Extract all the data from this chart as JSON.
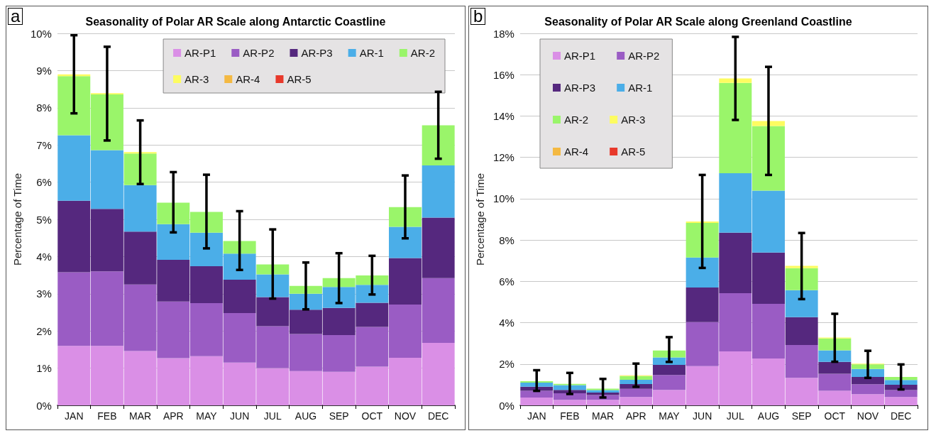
{
  "chart_data": [
    {
      "type": "bar",
      "title": "Seasonality of Polar AR Scale along Antarctic Coastline",
      "annotations": [
        "a"
      ],
      "ylabel": "Percentage of Time",
      "categories": [
        "JAN",
        "FEB",
        "MAR",
        "APR",
        "MAY",
        "JUN",
        "JUL",
        "AUG",
        "SEP",
        "OCT",
        "NOV",
        "DEC"
      ],
      "stacked": true,
      "ylim": [
        0,
        10
      ],
      "yticks": [
        {
          "value": 0,
          "label": "0%"
        },
        {
          "value": 1,
          "label": "1%"
        },
        {
          "value": 2,
          "label": "2%"
        },
        {
          "value": 3,
          "label": "3%"
        },
        {
          "value": 4,
          "label": "4%"
        },
        {
          "value": 5,
          "label": "5%"
        },
        {
          "value": 6,
          "label": "6%"
        },
        {
          "value": 7,
          "label": "7%"
        },
        {
          "value": 8,
          "label": "8%"
        },
        {
          "value": 9,
          "label": "9%"
        },
        {
          "value": 10,
          "label": "10%"
        }
      ],
      "grid": "y",
      "legend": "top right",
      "series": [
        {
          "name": "AR-P1",
          "color": "#da8fe6",
          "values": [
            1.6,
            1.6,
            1.46,
            1.27,
            1.32,
            1.15,
            1.0,
            0.92,
            0.9,
            1.04,
            1.28,
            1.68
          ]
        },
        {
          "name": "AR-P2",
          "color": "#9a5cc4",
          "values": [
            1.98,
            2.0,
            1.79,
            1.52,
            1.43,
            1.33,
            1.13,
            1.0,
            0.99,
            1.07,
            1.43,
            1.74
          ]
        },
        {
          "name": "AR-P3",
          "color": "#55287e",
          "values": [
            1.92,
            1.68,
            1.42,
            1.12,
            0.99,
            0.9,
            0.78,
            0.65,
            0.73,
            0.65,
            1.25,
            1.63
          ]
        },
        {
          "name": "AR-1",
          "color": "#4baee8",
          "values": [
            1.76,
            1.58,
            1.25,
            0.96,
            0.9,
            0.7,
            0.61,
            0.43,
            0.56,
            0.48,
            0.84,
            1.4
          ]
        },
        {
          "name": "AR-2",
          "color": "#9af56a",
          "values": [
            1.59,
            1.5,
            0.85,
            0.58,
            0.56,
            0.34,
            0.27,
            0.21,
            0.24,
            0.25,
            0.53,
            1.08
          ]
        },
        {
          "name": "AR-3",
          "color": "#fdfc60",
          "values": [
            0.05,
            0.03,
            0.04,
            0,
            0,
            0,
            0,
            0,
            0,
            0,
            0,
            0
          ]
        },
        {
          "name": "AR-4",
          "color": "#f4b942",
          "values": [
            0,
            0,
            0,
            0,
            0,
            0,
            0,
            0,
            0,
            0,
            0,
            0
          ]
        },
        {
          "name": "AR-5",
          "color": "#e8392b",
          "values": [
            0,
            0,
            0,
            0,
            0,
            0,
            0,
            0,
            0,
            0,
            0,
            0
          ],
          "errors": [
            [
              7.85,
              9.95
            ],
            [
              7.12,
              9.64
            ],
            [
              5.95,
              7.66
            ],
            [
              4.65,
              6.27
            ],
            [
              4.22,
              6.2
            ],
            [
              3.64,
              5.22
            ],
            [
              2.87,
              4.73
            ],
            [
              2.58,
              3.84
            ],
            [
              2.75,
              4.09
            ],
            [
              2.98,
              4.02
            ],
            [
              4.49,
              6.18
            ],
            [
              6.63,
              8.43
            ]
          ]
        }
      ]
    },
    {
      "type": "bar",
      "title": "Seasonality of Polar AR Scale along Greenland Coastline",
      "annotations": [
        "b"
      ],
      "ylabel": "Percentage of Time",
      "categories": [
        "JAN",
        "FEB",
        "MAR",
        "APR",
        "MAY",
        "JUN",
        "JUL",
        "AUG",
        "SEP",
        "OCT",
        "NOV",
        "DEC"
      ],
      "stacked": true,
      "ylim": [
        0,
        18
      ],
      "yticks": [
        {
          "value": 0,
          "label": "0%"
        },
        {
          "value": 2,
          "label": "2%"
        },
        {
          "value": 4,
          "label": "4%"
        },
        {
          "value": 6,
          "label": "6%"
        },
        {
          "value": 8,
          "label": "8%"
        },
        {
          "value": 10,
          "label": "10%"
        },
        {
          "value": 12,
          "label": "12%"
        },
        {
          "value": 14,
          "label": "14%"
        },
        {
          "value": 16,
          "label": "16%"
        },
        {
          "value": 18,
          "label": "18%"
        }
      ],
      "grid": "y",
      "legend": "top left",
      "series": [
        {
          "name": "AR-P1",
          "color": "#da8fe6",
          "values": [
            0.38,
            0.27,
            0.27,
            0.4,
            0.75,
            1.9,
            2.61,
            2.27,
            1.33,
            0.7,
            0.54,
            0.4
          ]
        },
        {
          "name": "AR-P2",
          "color": "#9a5cc4",
          "values": [
            0.32,
            0.31,
            0.23,
            0.4,
            0.72,
            2.13,
            2.82,
            2.64,
            1.59,
            0.83,
            0.48,
            0.34
          ]
        },
        {
          "name": "AR-P3",
          "color": "#55287e",
          "values": [
            0.2,
            0.17,
            0.12,
            0.23,
            0.49,
            1.67,
            2.93,
            2.48,
            1.35,
            0.57,
            0.35,
            0.26
          ]
        },
        {
          "name": "AR-1",
          "color": "#4baee8",
          "values": [
            0.2,
            0.23,
            0.12,
            0.21,
            0.36,
            1.45,
            2.87,
            3.0,
            1.3,
            0.56,
            0.39,
            0.23
          ]
        },
        {
          "name": "AR-2",
          "color": "#9af56a",
          "values": [
            0.07,
            0.06,
            0.07,
            0.18,
            0.33,
            1.68,
            4.37,
            3.13,
            1.07,
            0.58,
            0.22,
            0.14
          ]
        },
        {
          "name": "AR-3",
          "color": "#fdfc60",
          "values": [
            0,
            0,
            0,
            0.02,
            0,
            0.07,
            0.22,
            0.24,
            0.11,
            0.04,
            0.04,
            0
          ]
        },
        {
          "name": "AR-4",
          "color": "#f4b942",
          "values": [
            0,
            0,
            0,
            0.01,
            0,
            0,
            0,
            0,
            0,
            0,
            0,
            0
          ]
        },
        {
          "name": "AR-5",
          "color": "#e8392b",
          "values": [
            0,
            0,
            0,
            0,
            0,
            0,
            0,
            0,
            0,
            0,
            0,
            0
          ],
          "errors": [
            [
              0.7,
              1.7
            ],
            [
              0.55,
              1.57
            ],
            [
              0.38,
              1.28
            ],
            [
              0.9,
              2.02
            ],
            [
              2.1,
              3.3
            ],
            [
              6.65,
              11.15
            ],
            [
              13.81,
              17.83
            ],
            [
              11.15,
              16.38
            ],
            [
              5.14,
              8.34
            ],
            [
              2.11,
              4.43
            ],
            [
              1.33,
              2.64
            ],
            [
              0.77,
              1.98
            ]
          ]
        }
      ]
    }
  ]
}
